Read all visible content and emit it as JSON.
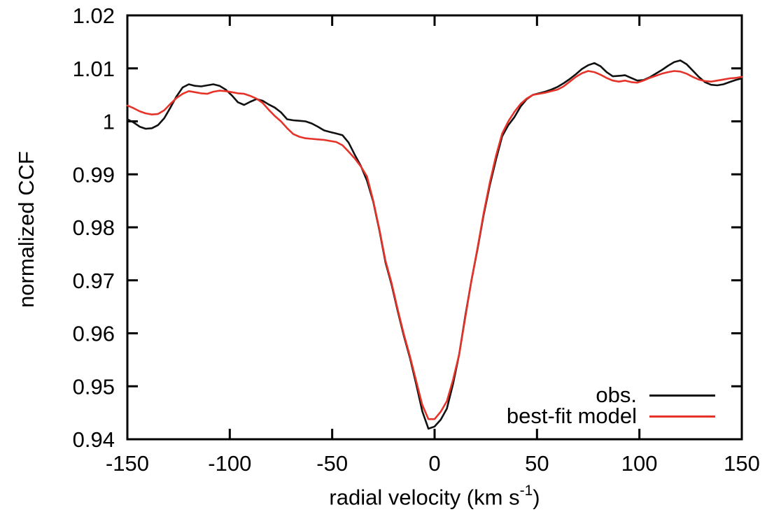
{
  "chart_data": {
    "type": "line",
    "title": "",
    "ylabel": "normalized CCF",
    "xlabel_parts": {
      "pre": "radial velocity (km s",
      "sup": "-1",
      "post": ")"
    },
    "xlim": [
      -150,
      150
    ],
    "ylim": [
      0.94,
      1.02
    ],
    "grid": false,
    "legend_position": "bottom-right inside",
    "tick_style": "inward, mirrored on all four borders",
    "axis_color": "#000000",
    "background": "#ffffff",
    "xticks": [
      -150,
      -100,
      -50,
      0,
      50,
      100,
      150
    ],
    "xtick_labels": [
      "-150",
      "-100",
      "-50",
      "0",
      "50",
      "100",
      "150"
    ],
    "yticks": [
      0.94,
      0.95,
      0.96,
      0.97,
      0.98,
      0.99,
      1.0,
      1.01,
      1.02
    ],
    "ytick_labels": [
      "0.94",
      "0.95",
      "0.96",
      "0.97",
      "0.98",
      "0.99",
      "1",
      "1.01",
      "1.02"
    ],
    "x": [
      -150,
      -147,
      -144,
      -141,
      -138,
      -135,
      -132,
      -129,
      -126,
      -123,
      -120,
      -117,
      -114,
      -111,
      -108,
      -105,
      -102,
      -99,
      -96,
      -93,
      -90,
      -87,
      -84,
      -81,
      -78,
      -75,
      -72,
      -69,
      -66,
      -63,
      -60,
      -57,
      -54,
      -51,
      -48,
      -45,
      -42,
      -39,
      -36,
      -33,
      -30,
      -27,
      -24,
      -21,
      -18,
      -15,
      -12,
      -9,
      -6,
      -3,
      0,
      3,
      6,
      9,
      12,
      15,
      18,
      21,
      24,
      27,
      30,
      33,
      36,
      39,
      42,
      45,
      48,
      51,
      54,
      57,
      60,
      63,
      66,
      69,
      72,
      75,
      78,
      81,
      84,
      87,
      90,
      93,
      96,
      99,
      102,
      105,
      108,
      111,
      114,
      117,
      120,
      123,
      126,
      129,
      132,
      135,
      138,
      141,
      144,
      147,
      150
    ],
    "series": [
      {
        "name": "obs.",
        "color": "#111111",
        "values": [
          1.0004,
          0.9998,
          0.999,
          0.9986,
          0.9987,
          0.9993,
          1.0006,
          1.0026,
          1.0047,
          1.0064,
          1.007,
          1.0067,
          1.0066,
          1.0068,
          1.007,
          1.0067,
          1.006,
          1.0049,
          1.0036,
          1.0031,
          1.0037,
          1.0042,
          1.0039,
          1.0032,
          1.0026,
          1.0017,
          1.0004,
          1.0002,
          1.0001,
          1.0,
          0.9996,
          0.999,
          0.9983,
          0.998,
          0.9977,
          0.9974,
          0.996,
          0.9937,
          0.9916,
          0.9888,
          0.9849,
          0.9795,
          0.9734,
          0.9692,
          0.9642,
          0.9595,
          0.9553,
          0.9504,
          0.9453,
          0.942,
          0.9424,
          0.9437,
          0.9458,
          0.9504,
          0.956,
          0.9633,
          0.97,
          0.976,
          0.9824,
          0.988,
          0.9928,
          0.9972,
          0.9993,
          1.0008,
          1.0028,
          1.0042,
          1.005,
          1.0053,
          1.0056,
          1.006,
          1.0065,
          1.0072,
          1.008,
          1.0089,
          1.0099,
          1.0106,
          1.011,
          1.0104,
          1.0093,
          1.0085,
          1.0086,
          1.0087,
          1.0082,
          1.0077,
          1.0078,
          1.0083,
          1.009,
          1.0097,
          1.0105,
          1.0112,
          1.0115,
          1.0108,
          1.0096,
          1.0084,
          1.0074,
          1.0069,
          1.0068,
          1.007,
          1.0074,
          1.0078,
          1.0081
        ]
      },
      {
        "name": "best-fit model",
        "color": "#e63329",
        "values": [
          1.003,
          1.0025,
          1.0019,
          1.0015,
          1.0013,
          1.0014,
          1.0021,
          1.0033,
          1.0044,
          1.0052,
          1.0057,
          1.0055,
          1.0053,
          1.0052,
          1.0056,
          1.0058,
          1.0057,
          1.0055,
          1.0053,
          1.0052,
          1.0048,
          1.0043,
          1.0035,
          1.0022,
          1.001,
          1.0,
          0.9987,
          0.9976,
          0.9971,
          0.9968,
          0.9967,
          0.9966,
          0.9965,
          0.9963,
          0.9961,
          0.9955,
          0.9943,
          0.993,
          0.9915,
          0.9896,
          0.9851,
          0.9797,
          0.9737,
          0.9695,
          0.9645,
          0.9598,
          0.9556,
          0.951,
          0.9465,
          0.9438,
          0.9438,
          0.9452,
          0.9472,
          0.9512,
          0.956,
          0.963,
          0.97,
          0.9762,
          0.9827,
          0.9885,
          0.9935,
          0.9977,
          1.0,
          1.0018,
          1.0033,
          1.0043,
          1.005,
          1.0052,
          1.0054,
          1.0057,
          1.006,
          1.0066,
          1.0075,
          1.0084,
          1.0091,
          1.0095,
          1.0093,
          1.0088,
          1.0082,
          1.0077,
          1.0075,
          1.0077,
          1.0074,
          1.0073,
          1.0077,
          1.0082,
          1.0086,
          1.009,
          1.0093,
          1.0095,
          1.0094,
          1.009,
          1.0084,
          1.0079,
          1.0076,
          1.0075,
          1.0077,
          1.0079,
          1.0081,
          1.0082,
          1.0084
        ]
      }
    ]
  }
}
